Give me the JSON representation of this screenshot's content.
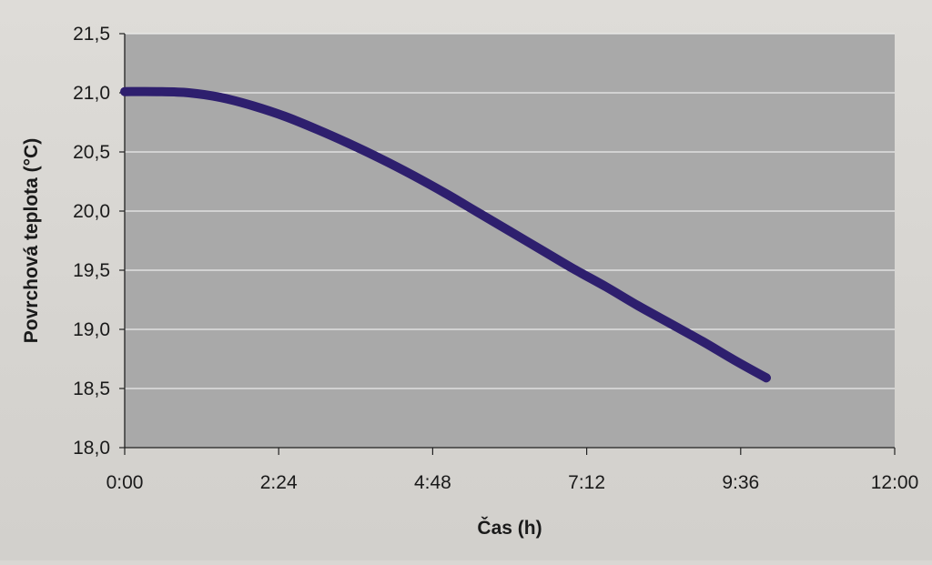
{
  "chart_data": {
    "type": "line",
    "title": "",
    "xlabel": "Čas (h)",
    "ylabel": "Povrchová teplota (°C)",
    "x_unit": "h:mm",
    "xlim": [
      "0:00",
      "12:00"
    ],
    "ylim": [
      18.0,
      21.5
    ],
    "x_ticks": [
      "0:00",
      "2:24",
      "4:48",
      "7:12",
      "9:36",
      "12:00"
    ],
    "y_ticks": [
      "18,0",
      "18,5",
      "19,0",
      "19,5",
      "20,0",
      "20,5",
      "21,0",
      "21,5"
    ],
    "grid": {
      "horizontal": true,
      "vertical": false
    },
    "legend": "none",
    "colors": {
      "plot_background": "#a9a9a9",
      "line": "#2e1f6e",
      "gridline": "#ececec"
    },
    "series": [
      {
        "name": "",
        "x": [
          "0:00",
          "0:30",
          "1:00",
          "1:30",
          "2:00",
          "2:30",
          "3:00",
          "3:30",
          "4:00",
          "4:30",
          "5:00",
          "5:30",
          "6:00",
          "6:30",
          "7:00",
          "7:30",
          "8:00",
          "8:30",
          "9:00",
          "9:30",
          "10:00"
        ],
        "y": [
          21.01,
          21.01,
          21.0,
          20.96,
          20.89,
          20.8,
          20.69,
          20.57,
          20.44,
          20.3,
          20.15,
          19.99,
          19.83,
          19.67,
          19.51,
          19.36,
          19.2,
          19.05,
          18.9,
          18.74,
          18.59
        ]
      }
    ]
  }
}
